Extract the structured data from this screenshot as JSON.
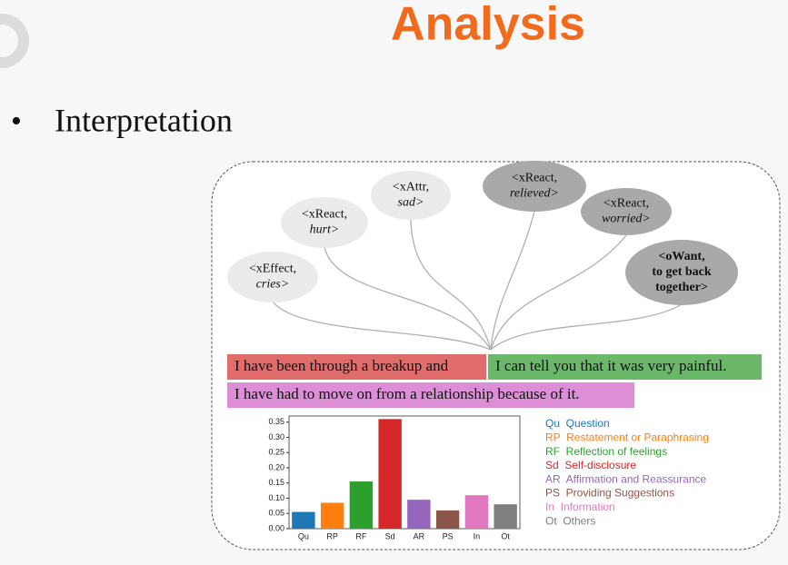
{
  "header": {
    "title": "Analysis"
  },
  "bullet": "Interpretation",
  "nodes": [
    {
      "lines": [
        "<xEffect,",
        "cries>"
      ],
      "color": "#ebebeb"
    },
    {
      "lines": [
        "<xReact,",
        "hurt>"
      ],
      "color": "#ebebeb"
    },
    {
      "lines": [
        "<xAttr,",
        "sad>"
      ],
      "color": "#ebebeb"
    },
    {
      "lines": [
        "<xReact,",
        "relieved>"
      ],
      "color": "#a9a9a9"
    },
    {
      "lines": [
        "<xReact,",
        "worried>"
      ],
      "color": "#a9a9a9"
    },
    {
      "lines": [
        "<oWant,",
        "to get back",
        "together>"
      ],
      "color": "#a9a9a9"
    }
  ],
  "sentences": [
    {
      "text": "I have been through a breakup and",
      "color": "#e06c6c"
    },
    {
      "text": "I can tell you that it was very painful.",
      "color": "#6bb86b"
    },
    {
      "text": "I have had to move on from a relationship because of it.",
      "color": "#dc8fd6"
    }
  ],
  "chart_data": {
    "type": "bar",
    "categories": [
      "Qu",
      "RP",
      "RF",
      "Sd",
      "AR",
      "PS",
      "In",
      "Ot"
    ],
    "values": [
      0.055,
      0.085,
      0.155,
      0.36,
      0.095,
      0.06,
      0.11,
      0.08
    ],
    "colors": [
      "#1f77b4",
      "#ff7f0e",
      "#2ca02c",
      "#d62728",
      "#9467bd",
      "#8c564b",
      "#e377c2",
      "#7f7f7f"
    ],
    "legend": [
      "Qu  Question",
      "RP  Restatement or Paraphrasing",
      "RF  Reflection of feelings",
      "Sd  Self-disclosure",
      "AR  Affirmation and Reassurance",
      "PS  Providing Suggestions",
      "In  Information",
      "Ot  Others"
    ],
    "ylim": [
      0,
      0.37
    ],
    "yticks": [
      {
        "value": 0,
        "label": "0.00"
      },
      0.05,
      {
        "value": 0.1,
        "label": "0.10"
      },
      0.15,
      {
        "value": 0.2,
        "label": "0.20"
      },
      0.25,
      {
        "value": 0.3,
        "label": "0.30"
      },
      0.35
    ]
  }
}
